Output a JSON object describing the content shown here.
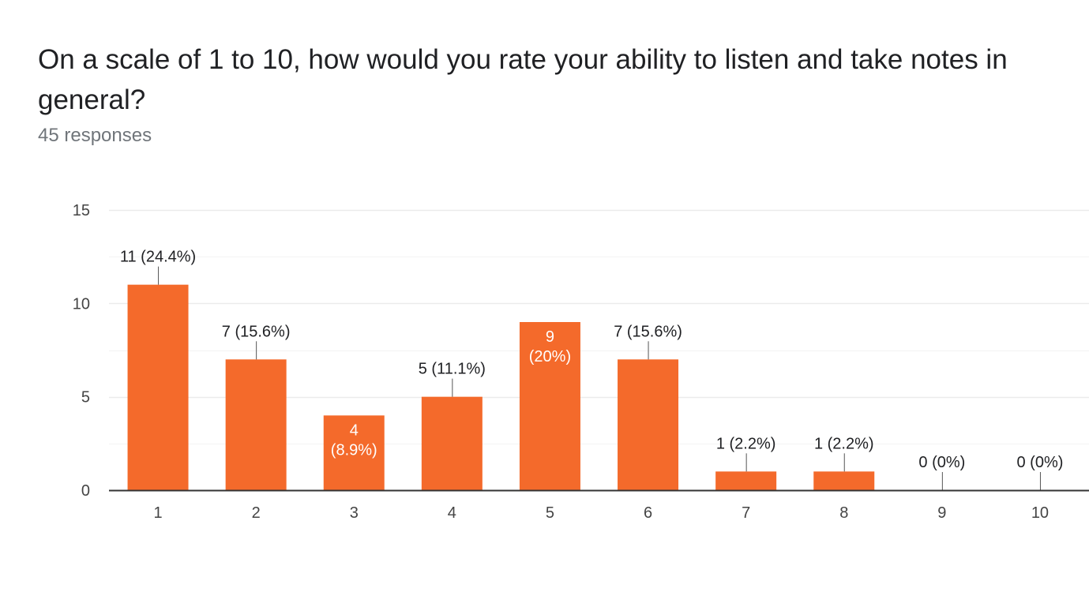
{
  "header": {
    "title": "On a scale of 1 to 10, how would you rate your ability to listen and take notes in general?",
    "responses": "45 responses"
  },
  "colors": {
    "bar": "#f46a2b",
    "grid": "#ebebeb",
    "axis": "#333333",
    "connector": "#555555"
  },
  "chart_data": {
    "type": "bar",
    "title": "On a scale of 1 to 10, how would you rate your ability to listen and take notes in general?",
    "xlabel": "",
    "ylabel": "",
    "categories": [
      "1",
      "2",
      "3",
      "4",
      "5",
      "6",
      "7",
      "8",
      "9",
      "10"
    ],
    "values": [
      11,
      7,
      4,
      5,
      9,
      7,
      1,
      1,
      0,
      0
    ],
    "data_labels": [
      "11 (24.4%)",
      "7 (15.6%)",
      "4\n(8.9%)",
      "5 (11.1%)",
      "9\n(20%)",
      "7 (15.6%)",
      "1 (2.2%)",
      "1 (2.2%)",
      "0 (0%)",
      "0 (0%)"
    ],
    "label_inside": [
      false,
      false,
      true,
      false,
      true,
      false,
      false,
      false,
      false,
      false
    ],
    "ylim": [
      0,
      15
    ],
    "yticks": [
      0,
      5,
      10,
      15
    ],
    "grid": true,
    "minor_grid": true
  }
}
